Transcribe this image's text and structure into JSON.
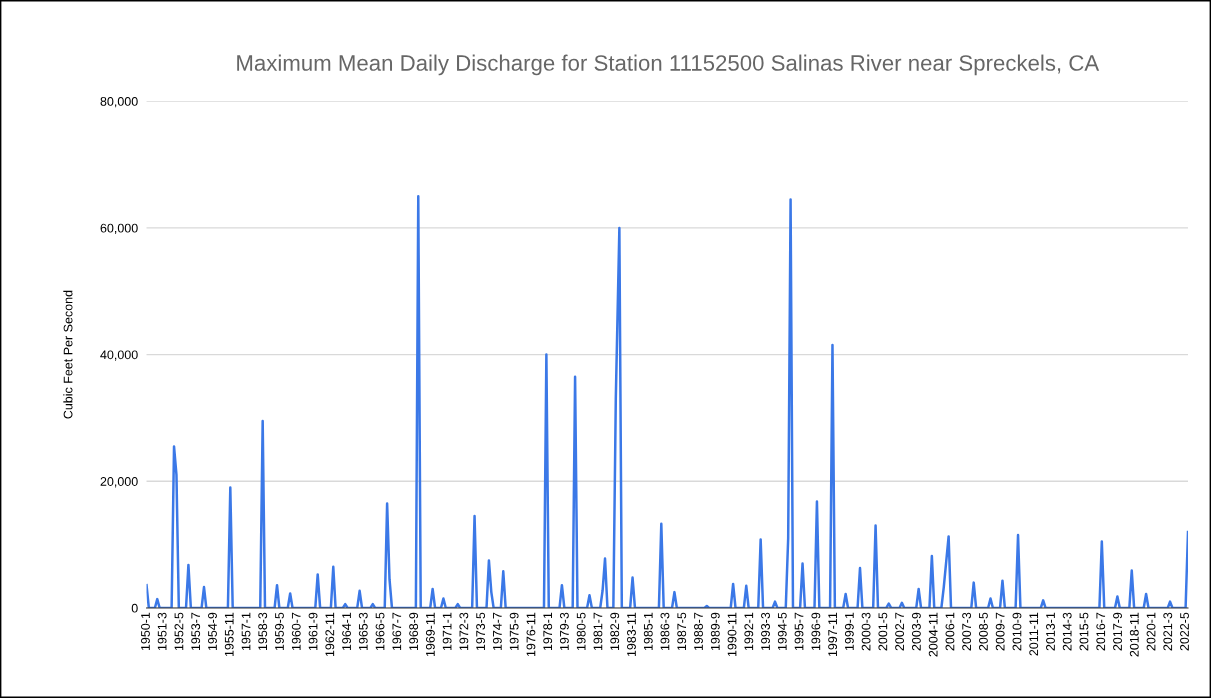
{
  "chart_data": {
    "type": "line",
    "title": "Maximum Mean Daily Discharge for Station 11152500 Salinas River near Spreckels, CA",
    "ylabel": "Cubic Feet Per Second",
    "x": [
      "1950-01",
      "1950-03",
      "1950-08",
      "1950-10",
      "1950-12",
      "1951-10",
      "1951-12",
      "1952-02",
      "1952-04",
      "1952-10",
      "1952-12",
      "1953-02",
      "1953-11",
      "1954-01",
      "1954-03",
      "1955-09",
      "1955-11",
      "1956-01",
      "1957-12",
      "1958-02",
      "1958-04",
      "1958-12",
      "1959-02",
      "1959-04",
      "1959-11",
      "1960-01",
      "1960-03",
      "1961-10",
      "1961-12",
      "1962-02",
      "1962-11",
      "1963-01",
      "1963-03",
      "1963-09",
      "1963-11",
      "1964-01",
      "1964-09",
      "1964-11",
      "1965-01",
      "1965-08",
      "1965-10",
      "1965-12",
      "1966-08",
      "1966-10",
      "1966-12",
      "1967-02",
      "1968-10",
      "1968-12",
      "1969-02",
      "1969-10",
      "1969-12",
      "1970-02",
      "1970-07",
      "1970-09",
      "1970-11",
      "1971-07",
      "1971-09",
      "1971-11",
      "1972-09",
      "1972-11",
      "1973-01",
      "1973-09",
      "1973-11",
      "1974-01",
      "1974-03",
      "1974-09",
      "1974-11",
      "1975-01",
      "1977-09",
      "1977-11",
      "1978-01",
      "1978-10",
      "1978-12",
      "1979-02",
      "1979-09",
      "1979-11",
      "1980-01",
      "1980-09",
      "1980-11",
      "1981-01",
      "1981-08",
      "1981-10",
      "1981-12",
      "1982-02",
      "1982-07",
      "1982-09",
      "1982-12",
      "1983-02",
      "1983-09",
      "1983-11",
      "1984-01",
      "1985-09",
      "1985-11",
      "1986-01",
      "1986-08",
      "1986-10",
      "1986-12",
      "1988-11",
      "1989-01",
      "1989-03",
      "1990-09",
      "1990-11",
      "1991-01",
      "1991-08",
      "1991-10",
      "1991-12",
      "1992-08",
      "1992-10",
      "1992-12",
      "1993-08",
      "1993-10",
      "1993-12",
      "1994-07",
      "1994-09",
      "1994-11",
      "1995-01",
      "1995-07",
      "1995-09",
      "1995-11",
      "1996-07",
      "1996-09",
      "1996-11",
      "1997-08",
      "1997-10",
      "1997-12",
      "1998-07",
      "1998-09",
      "1998-11",
      "1999-07",
      "1999-09",
      "1999-11",
      "2000-08",
      "2000-10",
      "2000-12",
      "2001-07",
      "2001-09",
      "2001-11",
      "2002-06",
      "2002-08",
      "2002-10",
      "2003-08",
      "2003-10",
      "2003-12",
      "2004-07",
      "2004-09",
      "2004-11",
      "2005-05",
      "2005-07",
      "2005-11",
      "2006-01",
      "2007-06",
      "2007-08",
      "2007-10",
      "2008-08",
      "2008-10",
      "2008-12",
      "2009-06",
      "2009-08",
      "2009-10",
      "2010-07",
      "2010-09",
      "2010-11",
      "2012-04",
      "2012-06",
      "2012-08",
      "2016-05",
      "2016-07",
      "2016-09",
      "2017-06",
      "2017-08",
      "2017-10",
      "2018-06",
      "2018-08",
      "2018-10",
      "2019-06",
      "2019-08",
      "2019-10",
      "2021-02",
      "2021-04",
      "2021-06",
      "2022-05",
      "2022-07"
    ],
    "series": [
      {
        "color": "#3b78e7",
        "values": [
          3600,
          0,
          0,
          1400,
          0,
          0,
          25500,
          21000,
          0,
          0,
          6800,
          0,
          0,
          3300,
          0,
          0,
          19000,
          0,
          0,
          29500,
          0,
          0,
          3600,
          0,
          0,
          2300,
          0,
          0,
          5300,
          0,
          0,
          6500,
          0,
          0,
          600,
          0,
          0,
          2700,
          0,
          0,
          600,
          0,
          0,
          16500,
          4500,
          0,
          0,
          65000,
          0,
          0,
          3000,
          0,
          0,
          1500,
          0,
          0,
          600,
          0,
          0,
          14500,
          0,
          0,
          7500,
          2500,
          0,
          0,
          5800,
          0,
          0,
          40000,
          0,
          0,
          3600,
          0,
          0,
          36500,
          0,
          0,
          2000,
          0,
          0,
          2800,
          7800,
          0,
          0,
          33000,
          60000,
          0,
          0,
          4800,
          0,
          0,
          13300,
          0,
          0,
          2500,
          0,
          0,
          300,
          0,
          0,
          3800,
          0,
          0,
          3500,
          0,
          0,
          10800,
          0,
          0,
          1000,
          0,
          0,
          11000,
          64500,
          0,
          0,
          7000,
          0,
          0,
          16800,
          0,
          0,
          41500,
          0,
          0,
          2200,
          0,
          0,
          6300,
          0,
          0,
          13000,
          0,
          0,
          700,
          0,
          0,
          800,
          0,
          0,
          3000,
          0,
          0,
          8200,
          0,
          0,
          3300,
          11300,
          0,
          0,
          4000,
          0,
          0,
          1500,
          0,
          0,
          4300,
          0,
          0,
          11500,
          0,
          0,
          1200,
          0,
          0,
          10500,
          0,
          0,
          1800,
          0,
          0,
          5900,
          0,
          0,
          2200,
          0,
          0,
          1000,
          0,
          0,
          12000
        ]
      }
    ],
    "xlim": [
      "1950-01",
      "2022-07"
    ],
    "xticks": [
      {
        "value": "1950-01",
        "label": "1950-1"
      },
      {
        "value": "1951-03",
        "label": "1951-3"
      },
      {
        "value": "1952-05",
        "label": "1952-5"
      },
      {
        "value": "1953-07",
        "label": "1953-7"
      },
      {
        "value": "1954-09",
        "label": "1954-9"
      },
      {
        "value": "1955-11",
        "label": "1955-11"
      },
      {
        "value": "1957-01",
        "label": "1957-1"
      },
      {
        "value": "1958-03",
        "label": "1958-3"
      },
      {
        "value": "1959-05",
        "label": "1959-5"
      },
      {
        "value": "1960-07",
        "label": "1960-7"
      },
      {
        "value": "1961-09",
        "label": "1961-9"
      },
      {
        "value": "1962-11",
        "label": "1962-11"
      },
      {
        "value": "1964-01",
        "label": "1964-1"
      },
      {
        "value": "1965-03",
        "label": "1965-3"
      },
      {
        "value": "1966-05",
        "label": "1966-5"
      },
      {
        "value": "1967-07",
        "label": "1967-7"
      },
      {
        "value": "1968-09",
        "label": "1968-9"
      },
      {
        "value": "1969-11",
        "label": "1969-11"
      },
      {
        "value": "1971-01",
        "label": "1971-1"
      },
      {
        "value": "1972-03",
        "label": "1972-3"
      },
      {
        "value": "1973-05",
        "label": "1973-5"
      },
      {
        "value": "1974-07",
        "label": "1974-7"
      },
      {
        "value": "1975-09",
        "label": "1975-9"
      },
      {
        "value": "1976-11",
        "label": "1976-11"
      },
      {
        "value": "1978-01",
        "label": "1978-1"
      },
      {
        "value": "1979-03",
        "label": "1979-3"
      },
      {
        "value": "1980-05",
        "label": "1980-5"
      },
      {
        "value": "1981-07",
        "label": "1981-7"
      },
      {
        "value": "1982-09",
        "label": "1982-9"
      },
      {
        "value": "1983-11",
        "label": "1983-11"
      },
      {
        "value": "1985-01",
        "label": "1985-1"
      },
      {
        "value": "1986-03",
        "label": "1986-3"
      },
      {
        "value": "1987-05",
        "label": "1987-5"
      },
      {
        "value": "1988-07",
        "label": "1988-7"
      },
      {
        "value": "1989-09",
        "label": "1989-9"
      },
      {
        "value": "1990-11",
        "label": "1990-11"
      },
      {
        "value": "1992-01",
        "label": "1992-1"
      },
      {
        "value": "1993-03",
        "label": "1993-3"
      },
      {
        "value": "1994-05",
        "label": "1994-5"
      },
      {
        "value": "1995-07",
        "label": "1995-7"
      },
      {
        "value": "1996-09",
        "label": "1996-9"
      },
      {
        "value": "1997-11",
        "label": "1997-11"
      },
      {
        "value": "1999-01",
        "label": "1999-1"
      },
      {
        "value": "2000-03",
        "label": "2000-3"
      },
      {
        "value": "2001-05",
        "label": "2001-5"
      },
      {
        "value": "2002-07",
        "label": "2002-7"
      },
      {
        "value": "2003-09",
        "label": "2003-9"
      },
      {
        "value": "2004-11",
        "label": "2004-11"
      },
      {
        "value": "2006-01",
        "label": "2006-1"
      },
      {
        "value": "2007-03",
        "label": "2007-3"
      },
      {
        "value": "2008-05",
        "label": "2008-5"
      },
      {
        "value": "2009-07",
        "label": "2009-7"
      },
      {
        "value": "2010-09",
        "label": "2010-9"
      },
      {
        "value": "2011-11",
        "label": "2011-11"
      },
      {
        "value": "2013-01",
        "label": "2013-1"
      },
      {
        "value": "2014-03",
        "label": "2014-3"
      },
      {
        "value": "2015-05",
        "label": "2015-5"
      },
      {
        "value": "2016-07",
        "label": "2016-7"
      },
      {
        "value": "2017-09",
        "label": "2017-9"
      },
      {
        "value": "2018-11",
        "label": "2018-11"
      },
      {
        "value": "2020-01",
        "label": "2020-1"
      },
      {
        "value": "2021-03",
        "label": "2021-3"
      },
      {
        "value": "2022-05",
        "label": "2022-5"
      }
    ],
    "ylim": [
      0,
      80000
    ],
    "yticks": [
      0,
      {
        "value": 20000,
        "label": "20,000"
      },
      {
        "value": 40000,
        "label": "40,000"
      },
      {
        "value": 60000,
        "label": "60,000"
      },
      {
        "value": 80000,
        "label": "80,000"
      }
    ],
    "grid": "y"
  }
}
